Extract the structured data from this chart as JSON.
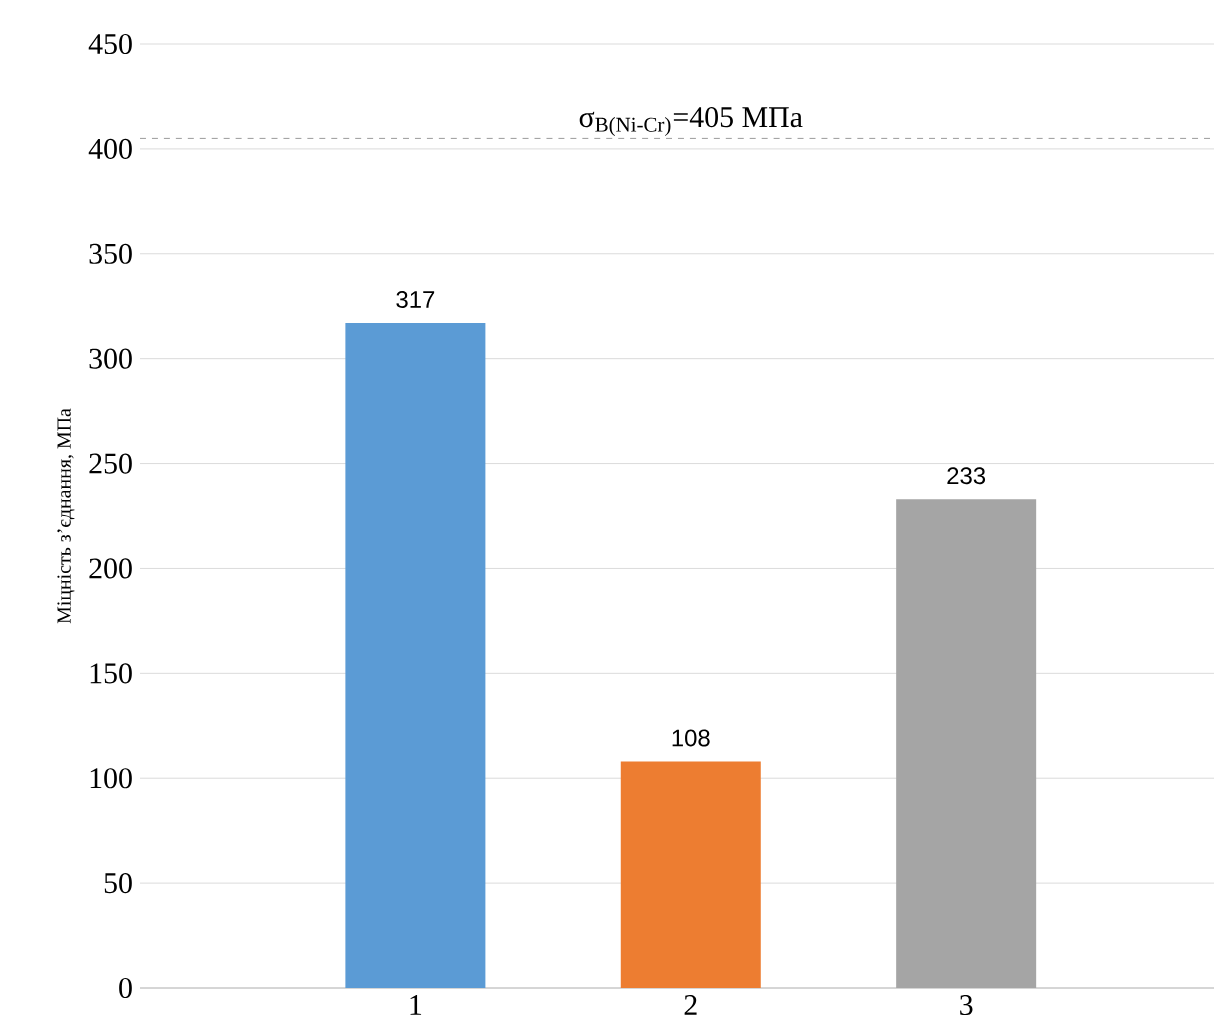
{
  "chart_data": {
    "type": "bar",
    "ylabel": "Міцність з’єднання, МПа",
    "categories": [
      "1",
      "2",
      "3"
    ],
    "values": [
      317,
      108,
      233
    ],
    "colors": [
      "#5b9bd5",
      "#ed7d31",
      "#a5a5a5"
    ],
    "ylim": [
      0,
      450
    ],
    "yticks": [
      0,
      50,
      100,
      150,
      200,
      250,
      300,
      350,
      400,
      450
    ],
    "grid": "y",
    "data_labels": true,
    "ref_lines": [
      {
        "axis": "y",
        "value": 405,
        "label": "σ$_{B(Ni-Cr)}$=405 МПа",
        "color": "#808080",
        "line_style": "dashed"
      }
    ]
  }
}
